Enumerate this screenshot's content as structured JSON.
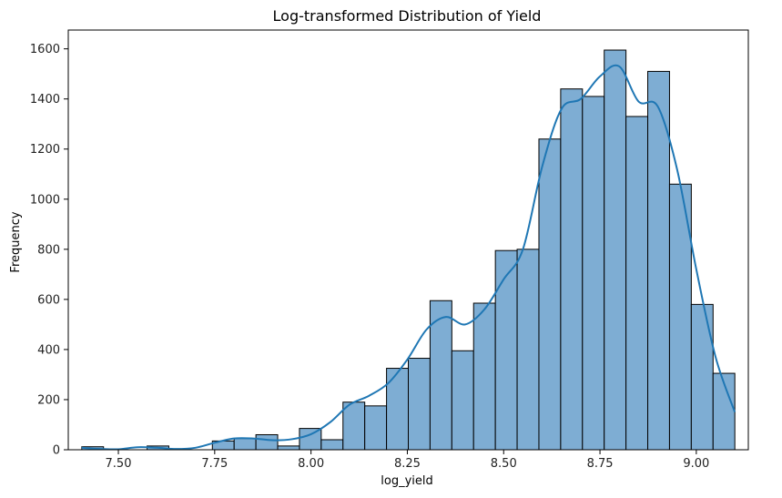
{
  "chart_data": {
    "type": "bar",
    "title": "Log-transformed Distribution of Yield",
    "xlabel": "log_yield",
    "ylabel": "Frequency",
    "xlim": [
      7.37,
      9.135
    ],
    "ylim": [
      0,
      1675
    ],
    "x_ticks": [
      "7.50",
      "7.75",
      "8.00",
      "8.25",
      "8.50",
      "8.75",
      "9.00"
    ],
    "y_ticks": [
      "0",
      "200",
      "400",
      "600",
      "800",
      "1000",
      "1200",
      "1400",
      "1600"
    ],
    "bin_start": 7.405,
    "bin_width": 0.0565,
    "values": [
      12,
      0,
      0,
      15,
      0,
      0,
      35,
      45,
      60,
      15,
      85,
      40,
      190,
      175,
      325,
      365,
      595,
      395,
      585,
      795,
      800,
      1240,
      1440,
      1410,
      1595,
      1330,
      1510,
      1060,
      580,
      305
    ],
    "kde": {
      "x": [
        7.405,
        7.45,
        7.5,
        7.55,
        7.6,
        7.65,
        7.7,
        7.75,
        7.8,
        7.85,
        7.9,
        7.95,
        8.0,
        8.05,
        8.1,
        8.15,
        8.2,
        8.25,
        8.3,
        8.35,
        8.4,
        8.45,
        8.5,
        8.55,
        8.6,
        8.65,
        8.7,
        8.75,
        8.8,
        8.85,
        8.9,
        8.95,
        9.0,
        9.05,
        9.1
      ],
      "y": [
        8,
        3,
        2,
        10,
        8,
        3,
        8,
        28,
        45,
        45,
        38,
        42,
        62,
        110,
        180,
        215,
        265,
        360,
        480,
        530,
        500,
        560,
        680,
        800,
        1130,
        1360,
        1400,
        1490,
        1530,
        1390,
        1370,
        1120,
        720,
        370,
        150
      ]
    },
    "bar_color": "#7eadd3",
    "bar_edge_color": "#000000",
    "kde_color": "#1f77b4",
    "grid": false
  }
}
